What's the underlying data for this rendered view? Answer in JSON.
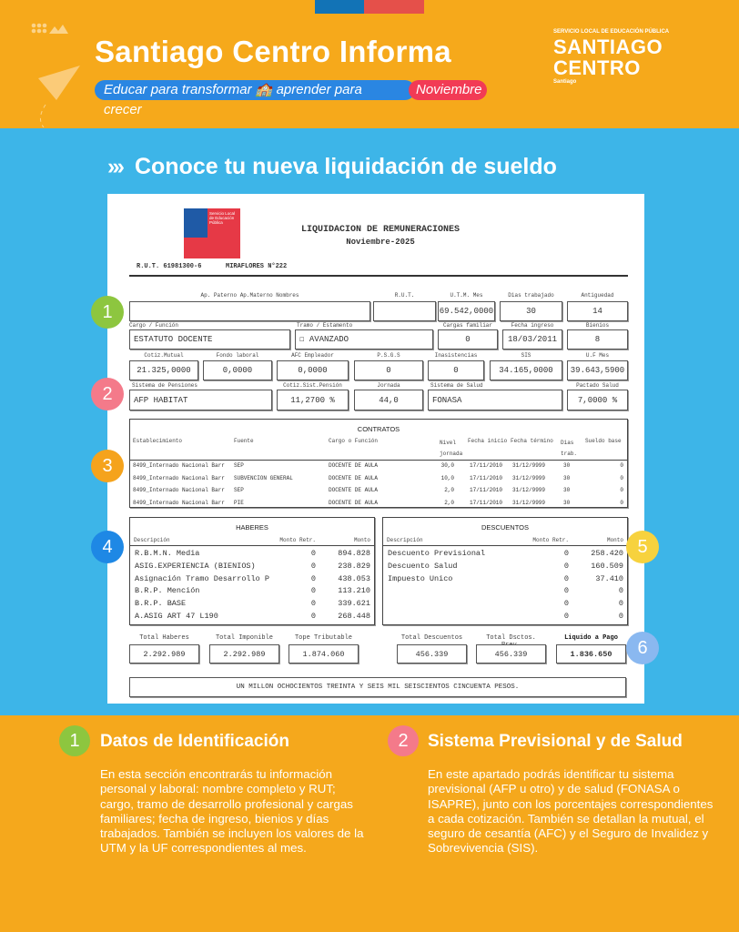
{
  "header": {
    "title": "Santiago Centro Informa",
    "slogan": "Educar para transformar 🏫 aprender para crecer",
    "month": "Noviembre",
    "logo": {
      "small": "SERVICIO LOCAL DE EDUCACIÓN PÚBLICA",
      "line1": "SANTIAGO",
      "line2": "CENTRO",
      "sub": "Santiago"
    },
    "colors": {
      "orange": "#F6A91B",
      "blue": "#2A86E2",
      "red": "#F23B55"
    }
  },
  "section_title": "Conoce tu nueva liquidación de sueldo",
  "payslip": {
    "logo_text": "Servicio Local de Educación Pública",
    "title": "LIQUIDACION DE REMUNERACIONES",
    "period": "Noviembre-2025",
    "rut_line": "R.U.T. 61981300-6",
    "address": "MIRAFLORES N°222",
    "labels": {
      "name": "Ap. Paterno  Ap.Materno  Nombres",
      "rut": "R.U.T.",
      "utm": "U.T.M. Mes",
      "dias": "Dias trabajado",
      "antiguedad": "Antiguedad",
      "cargo": "Cargo / Función",
      "tramo": "Tramo / Estamento",
      "cargas": "Cargas familiar",
      "fecha_ingreso": "Fecha ingreso",
      "bienios": "Bienios",
      "mutual": "Cotiz.Mutual",
      "fondo": "Fondo laboral",
      "afc": "AFC Empleador",
      "psgs": "P.S.G.S",
      "inasistencias": "Inasistencias",
      "sis": "SIS",
      "uf": "U.F Mes",
      "pensiones": "Sistema de Pensiones",
      "cotiz_pension": "Cotiz.Sist.Pensión",
      "jornada": "Jornada",
      "salud": "Sistema de Salud",
      "pactado": "Pactado Salud"
    },
    "values": {
      "name": "",
      "rut": "",
      "utm": "69.542,0000",
      "dias": "30",
      "antiguedad": "14",
      "cargo": "ESTATUTO DOCENTE",
      "tramo": "☐ AVANZADO",
      "cargas": "0",
      "fecha_ingreso": "18/03/2011",
      "bienios": "8",
      "mutual": "21.325,0000",
      "fondo": "0,0000",
      "afc": "0,0000",
      "psgs": "0",
      "inasistencias": "0",
      "sis": "34.165,0000",
      "uf": "39.643,5900",
      "pensiones": "AFP HABITAT",
      "cotiz_pension": "11,2700 %",
      "jornada": "44,0",
      "salud": "FONASA",
      "pactado": "7,0000 %"
    },
    "contratos": {
      "title": "CONTRATOS",
      "headers": [
        "Establecimiento",
        "Fuente",
        "Cargo o Función",
        "Nivel jornada",
        "Fecha inicio",
        "Fecha término",
        "Dias trab.",
        "Sueldo base"
      ],
      "rows": [
        [
          "8499_Internado Nacional Barr",
          "SEP",
          "DOCENTE DE AULA",
          "30,0",
          "17/11/2010",
          "31/12/9999",
          "30",
          "0"
        ],
        [
          "8499_Internado Nacional Barr",
          "SUBVENCION GENERAL",
          "DOCENTE DE AULA",
          "10,0",
          "17/11/2010",
          "31/12/9999",
          "30",
          "0"
        ],
        [
          "8499_Internado Nacional Barr",
          "SEP",
          "DOCENTE DE AULA",
          "2,0",
          "17/11/2010",
          "31/12/9999",
          "30",
          "0"
        ],
        [
          "8499_Internado Nacional Barr",
          "PIE",
          "DOCENTE DE AULA",
          "2,0",
          "17/11/2010",
          "31/12/9999",
          "30",
          "0"
        ]
      ]
    },
    "haberes": {
      "title": "HABERES",
      "headers": [
        "Descripción",
        "Monto Retr.",
        "Monto"
      ],
      "rows": [
        [
          "R.B.M.N. Media",
          "0",
          "894.828"
        ],
        [
          "ASIG.EXPERIENCIA (BIENIOS)",
          "0",
          "238.829"
        ],
        [
          "Asignación Tramo Desarrollo P",
          "0",
          "438.053"
        ],
        [
          "B.R.P. Mención",
          "0",
          "113.210"
        ],
        [
          "B.R.P. BASE",
          "0",
          "339.621"
        ],
        [
          "A.ASIG ART 47 L190",
          "0",
          "268.448"
        ]
      ]
    },
    "descuentos": {
      "title": "DESCUENTOS",
      "headers": [
        "Descripción",
        "Monto Retr.",
        "Monto"
      ],
      "rows": [
        [
          "Descuento Previsional",
          "0",
          "258.420"
        ],
        [
          "Descuento Salud",
          "0",
          "160.509"
        ],
        [
          "Impuesto Unico",
          "0",
          "37.410"
        ],
        [
          "",
          "0",
          "0"
        ],
        [
          "",
          "0",
          "0"
        ],
        [
          "",
          "0",
          "0"
        ]
      ]
    },
    "totals": [
      {
        "label": "Total Haberes",
        "value": "2.292.989"
      },
      {
        "label": "Total Imponible",
        "value": "2.292.989"
      },
      {
        "label": "Tope Tributable",
        "value": "1.874.060"
      },
      {
        "label": "Total Descuentos",
        "value": "456.339"
      },
      {
        "label": "Total Dsctos. Prev.",
        "value": "456.339"
      },
      {
        "label": "Liquido a Pago",
        "value": "1.836.650"
      }
    ],
    "amount_words": "UN MILLON OCHOCIENTOS TREINTA Y SEIS MIL SEISCIENTOS CINCUENTA PESOS."
  },
  "badges": [
    {
      "n": "1",
      "color": "#8DC63F"
    },
    {
      "n": "2",
      "color": "#F47A8A"
    },
    {
      "n": "3",
      "color": "#F5A31C"
    },
    {
      "n": "4",
      "color": "#1E88E5"
    },
    {
      "n": "5",
      "color": "#F7D23E"
    },
    {
      "n": "6",
      "color": "#8AB8F0"
    }
  ],
  "explanations": [
    {
      "n": "1",
      "title": "Datos de Identificación",
      "text": "En esta sección encontrarás tu información personal y laboral: nombre completo y RUT; cargo, tramo de desarrollo profesional y cargas familiares; fecha de ingreso, bienios y días trabajados. También se incluyen los valores de la UTM y la UF correspondientes al mes."
    },
    {
      "n": "2",
      "title": "Sistema Previsional y de Salud",
      "text": "En este apartado podrás identificar tu sistema previsional (AFP u otro) y de salud (FONASA o ISAPRE), junto con los porcentajes correspondientes a cada cotización. También se detallan la mutual, el seguro de cesantía (AFC) y el Seguro de Invalidez y Sobrevivencia (SIS)."
    }
  ]
}
